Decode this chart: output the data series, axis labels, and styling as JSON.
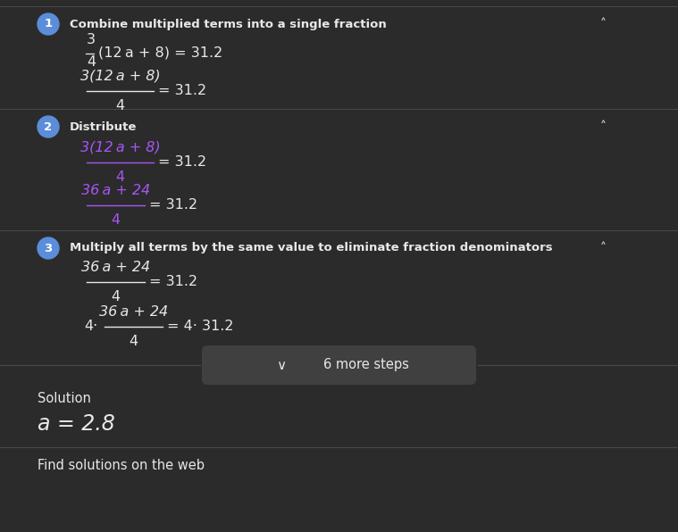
{
  "bg_color": "#2b2b2b",
  "text_color": "#e8e8e8",
  "purple_color": "#a855f7",
  "divider_color": "#4a4a4a",
  "badge_color": "#5b8dd9",
  "button_bg": "#3d3d3d",
  "button_text": "6 more steps",
  "solution_label": "Solution",
  "solution_value": "a = 2.8",
  "footer_text": "Find solutions on the web",
  "fig_w": 7.59,
  "fig_h": 5.96,
  "dpi": 100
}
